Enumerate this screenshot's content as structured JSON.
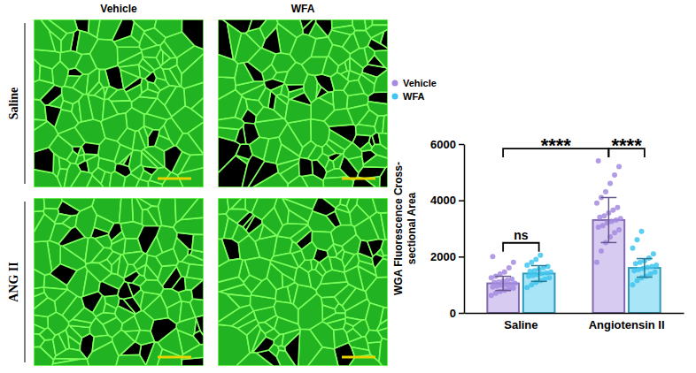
{
  "chart_data": {
    "type": "bar",
    "y_label": "WGA Fluorescence Cross-sectional Area",
    "categories": [
      "Saline",
      "Angiotensin II"
    ],
    "series": [
      {
        "name": "Vehicle",
        "color": "#a58be0",
        "values": [
          1050,
          3300
        ],
        "errors": [
          250,
          800
        ],
        "points": [
          [
            620,
            700,
            760,
            800,
            850,
            880,
            920,
            950,
            980,
            1000,
            1020,
            1050,
            1080,
            1100,
            1130,
            1160,
            1200,
            1250,
            1300,
            1380,
            1450,
            1600,
            1800,
            2000
          ],
          [
            1800,
            2200,
            2500,
            2700,
            2850,
            2950,
            3050,
            3100,
            3200,
            3250,
            3300,
            3350,
            3400,
            3450,
            3550,
            3650,
            3750,
            3900,
            4100,
            4300,
            4600,
            4900,
            5200,
            5400
          ]
        ]
      },
      {
        "name": "WFA",
        "color": "#3ec6ee",
        "values": [
          1400,
          1600
        ],
        "errors": [
          280,
          330
        ],
        "points": [
          [
            900,
            1000,
            1080,
            1150,
            1200,
            1250,
            1300,
            1330,
            1360,
            1400,
            1420,
            1450,
            1480,
            1500,
            1550,
            1600,
            1650,
            1700,
            1800,
            1900,
            2050
          ],
          [
            1000,
            1150,
            1250,
            1300,
            1380,
            1450,
            1500,
            1540,
            1580,
            1620,
            1650,
            1700,
            1750,
            1800,
            1850,
            1950,
            2100,
            2300,
            2600,
            2900
          ]
        ]
      }
    ],
    "ylim": [
      0,
      6000
    ],
    "yticks": [
      0,
      2000,
      4000,
      6000
    ],
    "legend": "top-left",
    "annotations": [
      {
        "text": "****",
        "from": {
          "series": "Vehicle",
          "category": "Saline"
        },
        "to": {
          "series": "Vehicle",
          "category": "Angiotensin II"
        }
      },
      {
        "text": "****",
        "from": {
          "series": "Vehicle",
          "category": "Angiotensin II"
        },
        "to": {
          "series": "WFA",
          "category": "Angiotensin II"
        }
      },
      {
        "text": "ns",
        "from": {
          "series": "Vehicle",
          "category": "Saline"
        },
        "to": {
          "series": "WFA",
          "category": "Saline"
        }
      }
    ]
  },
  "image_grid": {
    "columns": [
      "Vehicle",
      "WFA"
    ],
    "rows": [
      "Saline",
      "ANG II"
    ]
  }
}
